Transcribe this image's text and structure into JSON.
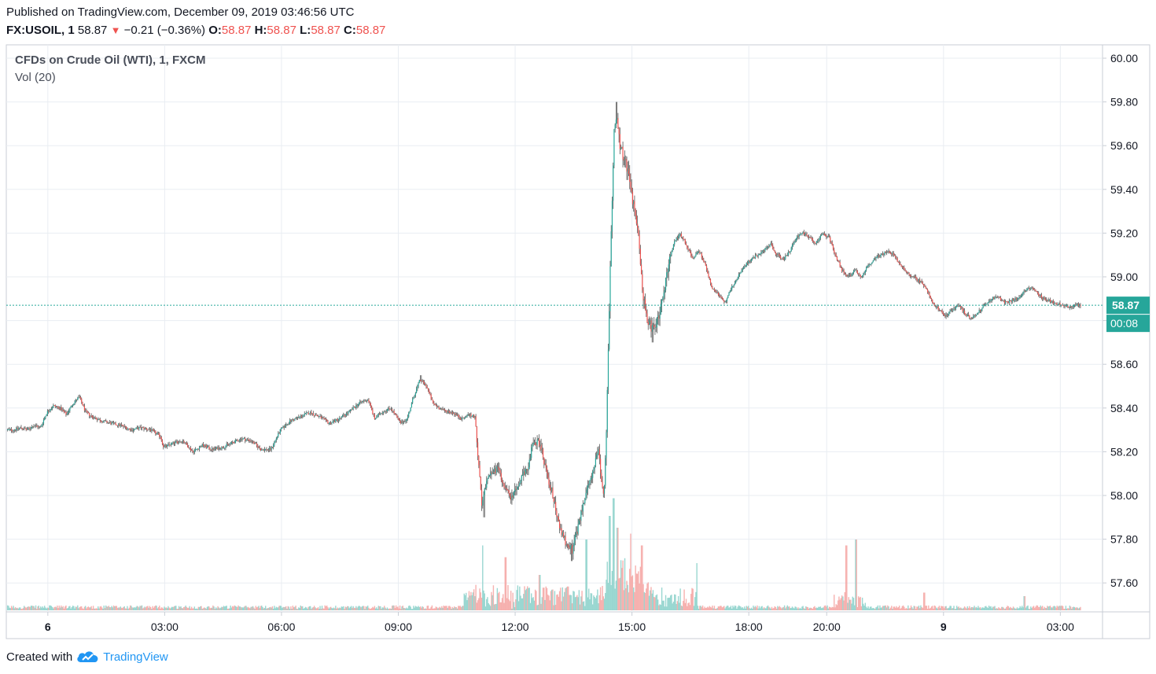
{
  "header": {
    "published": "Published on TradingView.com, December 09, 2019 03:46:56 UTC",
    "symbol": "FX:USOIL, 1",
    "last": "58.87",
    "change": "−0.21 (−0.36%)",
    "o_label": "O:",
    "o_value": "58.87",
    "h_label": "H:",
    "h_value": "58.87",
    "l_label": "L:",
    "l_value": "58.87",
    "c_label": "C:",
    "c_value": "58.87"
  },
  "legend": {
    "title": "CFDs on Crude Oil (WTI), 1, FXCM",
    "volume": "Vol (20)"
  },
  "footer": {
    "created_with": "Created with",
    "brand": "TradingView"
  },
  "colors": {
    "up": "#26a69a",
    "down": "#ef5350",
    "vol_up": "#8fd3cc",
    "vol_down": "#f5a8a6",
    "price_line": "#26a69a",
    "grid": "#e9edf2",
    "axis_text": "#131722"
  },
  "chart_data": {
    "type": "candlestick",
    "title": "CFDs on Crude Oil (WTI), 1, FXCM",
    "y_ticks": [
      "60.00",
      "59.80",
      "59.60",
      "59.40",
      "59.20",
      "59.00",
      "58.80",
      "58.60",
      "58.40",
      "58.20",
      "58.00",
      "57.80",
      "57.60"
    ],
    "ylim": [
      57.45,
      60.05
    ],
    "x_ticks": [
      {
        "label": "6",
        "t": 0,
        "bold": true
      },
      {
        "label": "03:00",
        "t": 180,
        "bold": false
      },
      {
        "label": "06:00",
        "t": 360,
        "bold": false
      },
      {
        "label": "09:00",
        "t": 540,
        "bold": false
      },
      {
        "label": "12:00",
        "t": 720,
        "bold": false
      },
      {
        "label": "15:00",
        "t": 900,
        "bold": false
      },
      {
        "label": "18:00",
        "t": 1080,
        "bold": false
      },
      {
        "label": "20:00",
        "t": 1200,
        "bold": false
      },
      {
        "label": "9",
        "t": 1380,
        "bold": true
      },
      {
        "label": "03:00",
        "t": 1560,
        "bold": false
      }
    ],
    "x_unit": "minutes from Dec 6 00:00 (session axis)",
    "x_range": [
      -64,
      1625
    ],
    "last_price": 58.87,
    "last_price_label": "58.87",
    "countdown": "00:08",
    "price_path": [
      [
        -62,
        58.3
      ],
      [
        -50,
        58.3
      ],
      [
        -40,
        58.31
      ],
      [
        -30,
        58.3
      ],
      [
        -20,
        58.32
      ],
      [
        -10,
        58.31
      ],
      [
        0,
        58.38
      ],
      [
        10,
        58.41
      ],
      [
        20,
        58.4
      ],
      [
        30,
        58.37
      ],
      [
        40,
        58.42
      ],
      [
        50,
        58.45
      ],
      [
        60,
        58.38
      ],
      [
        70,
        58.36
      ],
      [
        85,
        58.34
      ],
      [
        100,
        58.33
      ],
      [
        115,
        58.32
      ],
      [
        130,
        58.3
      ],
      [
        145,
        58.31
      ],
      [
        160,
        58.3
      ],
      [
        175,
        58.27
      ],
      [
        180,
        58.22
      ],
      [
        195,
        58.24
      ],
      [
        210,
        58.25
      ],
      [
        225,
        58.2
      ],
      [
        240,
        58.23
      ],
      [
        255,
        58.21
      ],
      [
        270,
        58.22
      ],
      [
        285,
        58.24
      ],
      [
        300,
        58.26
      ],
      [
        315,
        58.25
      ],
      [
        330,
        58.21
      ],
      [
        345,
        58.21
      ],
      [
        360,
        58.3
      ],
      [
        375,
        58.34
      ],
      [
        390,
        58.36
      ],
      [
        405,
        58.38
      ],
      [
        420,
        58.36
      ],
      [
        435,
        58.33
      ],
      [
        450,
        58.35
      ],
      [
        465,
        58.38
      ],
      [
        480,
        58.42
      ],
      [
        495,
        58.44
      ],
      [
        505,
        58.35
      ],
      [
        515,
        58.38
      ],
      [
        530,
        58.4
      ],
      [
        545,
        58.33
      ],
      [
        555,
        58.35
      ],
      [
        565,
        58.45
      ],
      [
        575,
        58.53
      ],
      [
        585,
        58.5
      ],
      [
        595,
        58.42
      ],
      [
        610,
        58.39
      ],
      [
        625,
        58.38
      ],
      [
        640,
        58.35
      ],
      [
        650,
        58.37
      ],
      [
        660,
        58.36
      ],
      [
        670,
        57.95
      ],
      [
        680,
        58.1
      ],
      [
        695,
        58.12
      ],
      [
        705,
        58.05
      ],
      [
        715,
        57.98
      ],
      [
        725,
        58.05
      ],
      [
        740,
        58.12
      ],
      [
        750,
        58.25
      ],
      [
        760,
        58.24
      ],
      [
        770,
        58.1
      ],
      [
        780,
        58.0
      ],
      [
        790,
        57.85
      ],
      [
        800,
        57.78
      ],
      [
        810,
        57.75
      ],
      [
        820,
        57.88
      ],
      [
        830,
        58.0
      ],
      [
        840,
        58.1
      ],
      [
        850,
        58.2
      ],
      [
        858,
        57.98
      ],
      [
        862,
        58.3
      ],
      [
        866,
        58.8
      ],
      [
        870,
        59.25
      ],
      [
        874,
        59.65
      ],
      [
        878,
        59.75
      ],
      [
        884,
        59.58
      ],
      [
        890,
        59.55
      ],
      [
        898,
        59.45
      ],
      [
        905,
        59.3
      ],
      [
        912,
        59.18
      ],
      [
        918,
        58.92
      ],
      [
        925,
        58.8
      ],
      [
        935,
        58.75
      ],
      [
        945,
        58.85
      ],
      [
        955,
        59.0
      ],
      [
        965,
        59.15
      ],
      [
        975,
        59.2
      ],
      [
        985,
        59.15
      ],
      [
        995,
        59.08
      ],
      [
        1005,
        59.12
      ],
      [
        1015,
        59.05
      ],
      [
        1025,
        58.95
      ],
      [
        1035,
        58.92
      ],
      [
        1045,
        58.88
      ],
      [
        1055,
        58.95
      ],
      [
        1065,
        59.0
      ],
      [
        1075,
        59.05
      ],
      [
        1085,
        59.08
      ],
      [
        1095,
        59.1
      ],
      [
        1105,
        59.12
      ],
      [
        1115,
        59.15
      ],
      [
        1125,
        59.1
      ],
      [
        1135,
        59.08
      ],
      [
        1145,
        59.12
      ],
      [
        1155,
        59.18
      ],
      [
        1165,
        59.2
      ],
      [
        1175,
        59.18
      ],
      [
        1185,
        59.15
      ],
      [
        1195,
        59.2
      ],
      [
        1205,
        59.18
      ],
      [
        1215,
        59.1
      ],
      [
        1225,
        59.03
      ],
      [
        1235,
        59.0
      ],
      [
        1245,
        59.03
      ],
      [
        1255,
        59.0
      ],
      [
        1265,
        59.05
      ],
      [
        1275,
        59.08
      ],
      [
        1285,
        59.1
      ],
      [
        1295,
        59.12
      ],
      [
        1305,
        59.1
      ],
      [
        1315,
        59.05
      ],
      [
        1325,
        59.02
      ],
      [
        1335,
        59.0
      ],
      [
        1345,
        58.98
      ],
      [
        1355,
        58.95
      ],
      [
        1365,
        58.88
      ],
      [
        1375,
        58.85
      ],
      [
        1385,
        58.82
      ],
      [
        1395,
        58.85
      ],
      [
        1405,
        58.87
      ],
      [
        1415,
        58.83
      ],
      [
        1425,
        58.81
      ],
      [
        1435,
        58.84
      ],
      [
        1445,
        58.87
      ],
      [
        1455,
        58.9
      ],
      [
        1465,
        58.91
      ],
      [
        1475,
        58.88
      ],
      [
        1485,
        58.89
      ],
      [
        1495,
        58.9
      ],
      [
        1505,
        58.93
      ],
      [
        1515,
        58.95
      ],
      [
        1525,
        58.93
      ],
      [
        1535,
        58.9
      ],
      [
        1545,
        58.89
      ],
      [
        1555,
        58.88
      ],
      [
        1565,
        58.87
      ],
      [
        1575,
        58.86
      ],
      [
        1585,
        58.87
      ],
      [
        1592,
        58.87
      ]
    ],
    "extremes": [
      {
        "t": 876,
        "high": 59.8
      },
      {
        "t": 807,
        "low": 57.7
      },
      {
        "t": 932,
        "low": 58.7
      },
      {
        "t": 672,
        "low": 57.9
      },
      {
        "t": 575,
        "high": 58.55
      }
    ],
    "volume_spikes": [
      {
        "t": 670,
        "rel": 0.55
      },
      {
        "t": 705,
        "rel": 0.45
      },
      {
        "t": 758,
        "rel": 0.3
      },
      {
        "t": 830,
        "rel": 0.6
      },
      {
        "t": 866,
        "rel": 0.8
      },
      {
        "t": 872,
        "rel": 0.95
      },
      {
        "t": 878,
        "rel": 0.7
      },
      {
        "t": 898,
        "rel": 0.65
      },
      {
        "t": 915,
        "rel": 0.55
      },
      {
        "t": 1000,
        "rel": 0.4
      },
      {
        "t": 1230,
        "rel": 0.55
      },
      {
        "t": 1245,
        "rel": 0.6
      },
      {
        "t": 1350,
        "rel": 0.15
      },
      {
        "t": 1505,
        "rel": 0.12
      }
    ]
  }
}
